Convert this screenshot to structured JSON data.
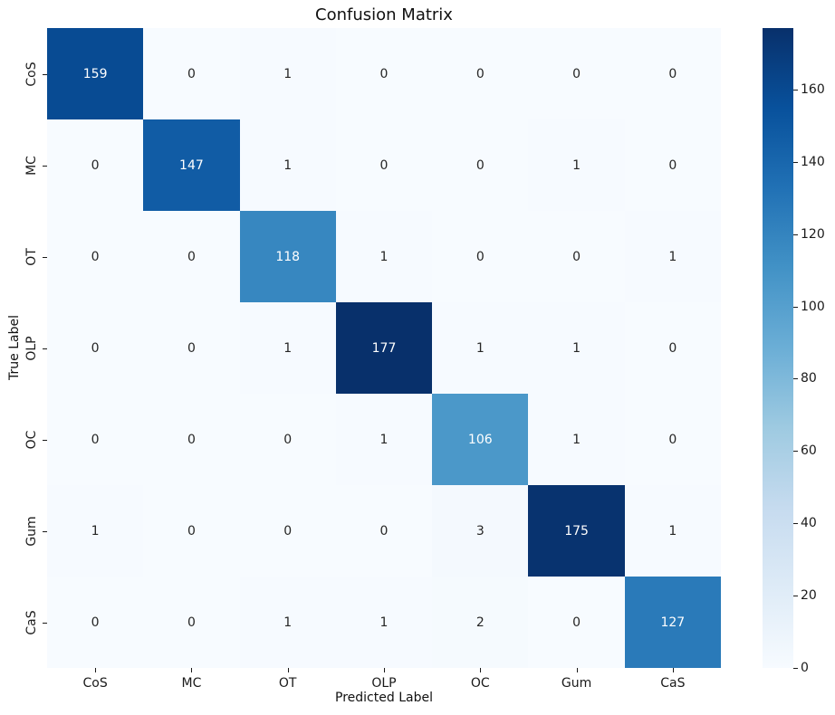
{
  "chart_data": {
    "type": "heatmap",
    "title": "Confusion Matrix",
    "xlabel": "Predicted Label",
    "ylabel": "True Label",
    "categories": [
      "CoS",
      "MC",
      "OT",
      "OLP",
      "OC",
      "Gum",
      "CaS"
    ],
    "matrix": [
      [
        159,
        0,
        1,
        0,
        0,
        0,
        0
      ],
      [
        0,
        147,
        1,
        0,
        0,
        1,
        0
      ],
      [
        0,
        0,
        118,
        1,
        0,
        0,
        1
      ],
      [
        0,
        0,
        1,
        177,
        1,
        1,
        0
      ],
      [
        0,
        0,
        0,
        1,
        106,
        1,
        0
      ],
      [
        1,
        0,
        0,
        0,
        3,
        175,
        1
      ],
      [
        0,
        0,
        1,
        1,
        2,
        0,
        127
      ]
    ],
    "vmin": 0,
    "vmax": 177,
    "colormap": "Blues",
    "colorbar_ticks": [
      0,
      20,
      40,
      60,
      80,
      100,
      120,
      140,
      160
    ],
    "legend_position": "right-colorbar",
    "grid": false,
    "annotation_color_dark": "#262626",
    "annotation_color_light": "#ffffff"
  }
}
